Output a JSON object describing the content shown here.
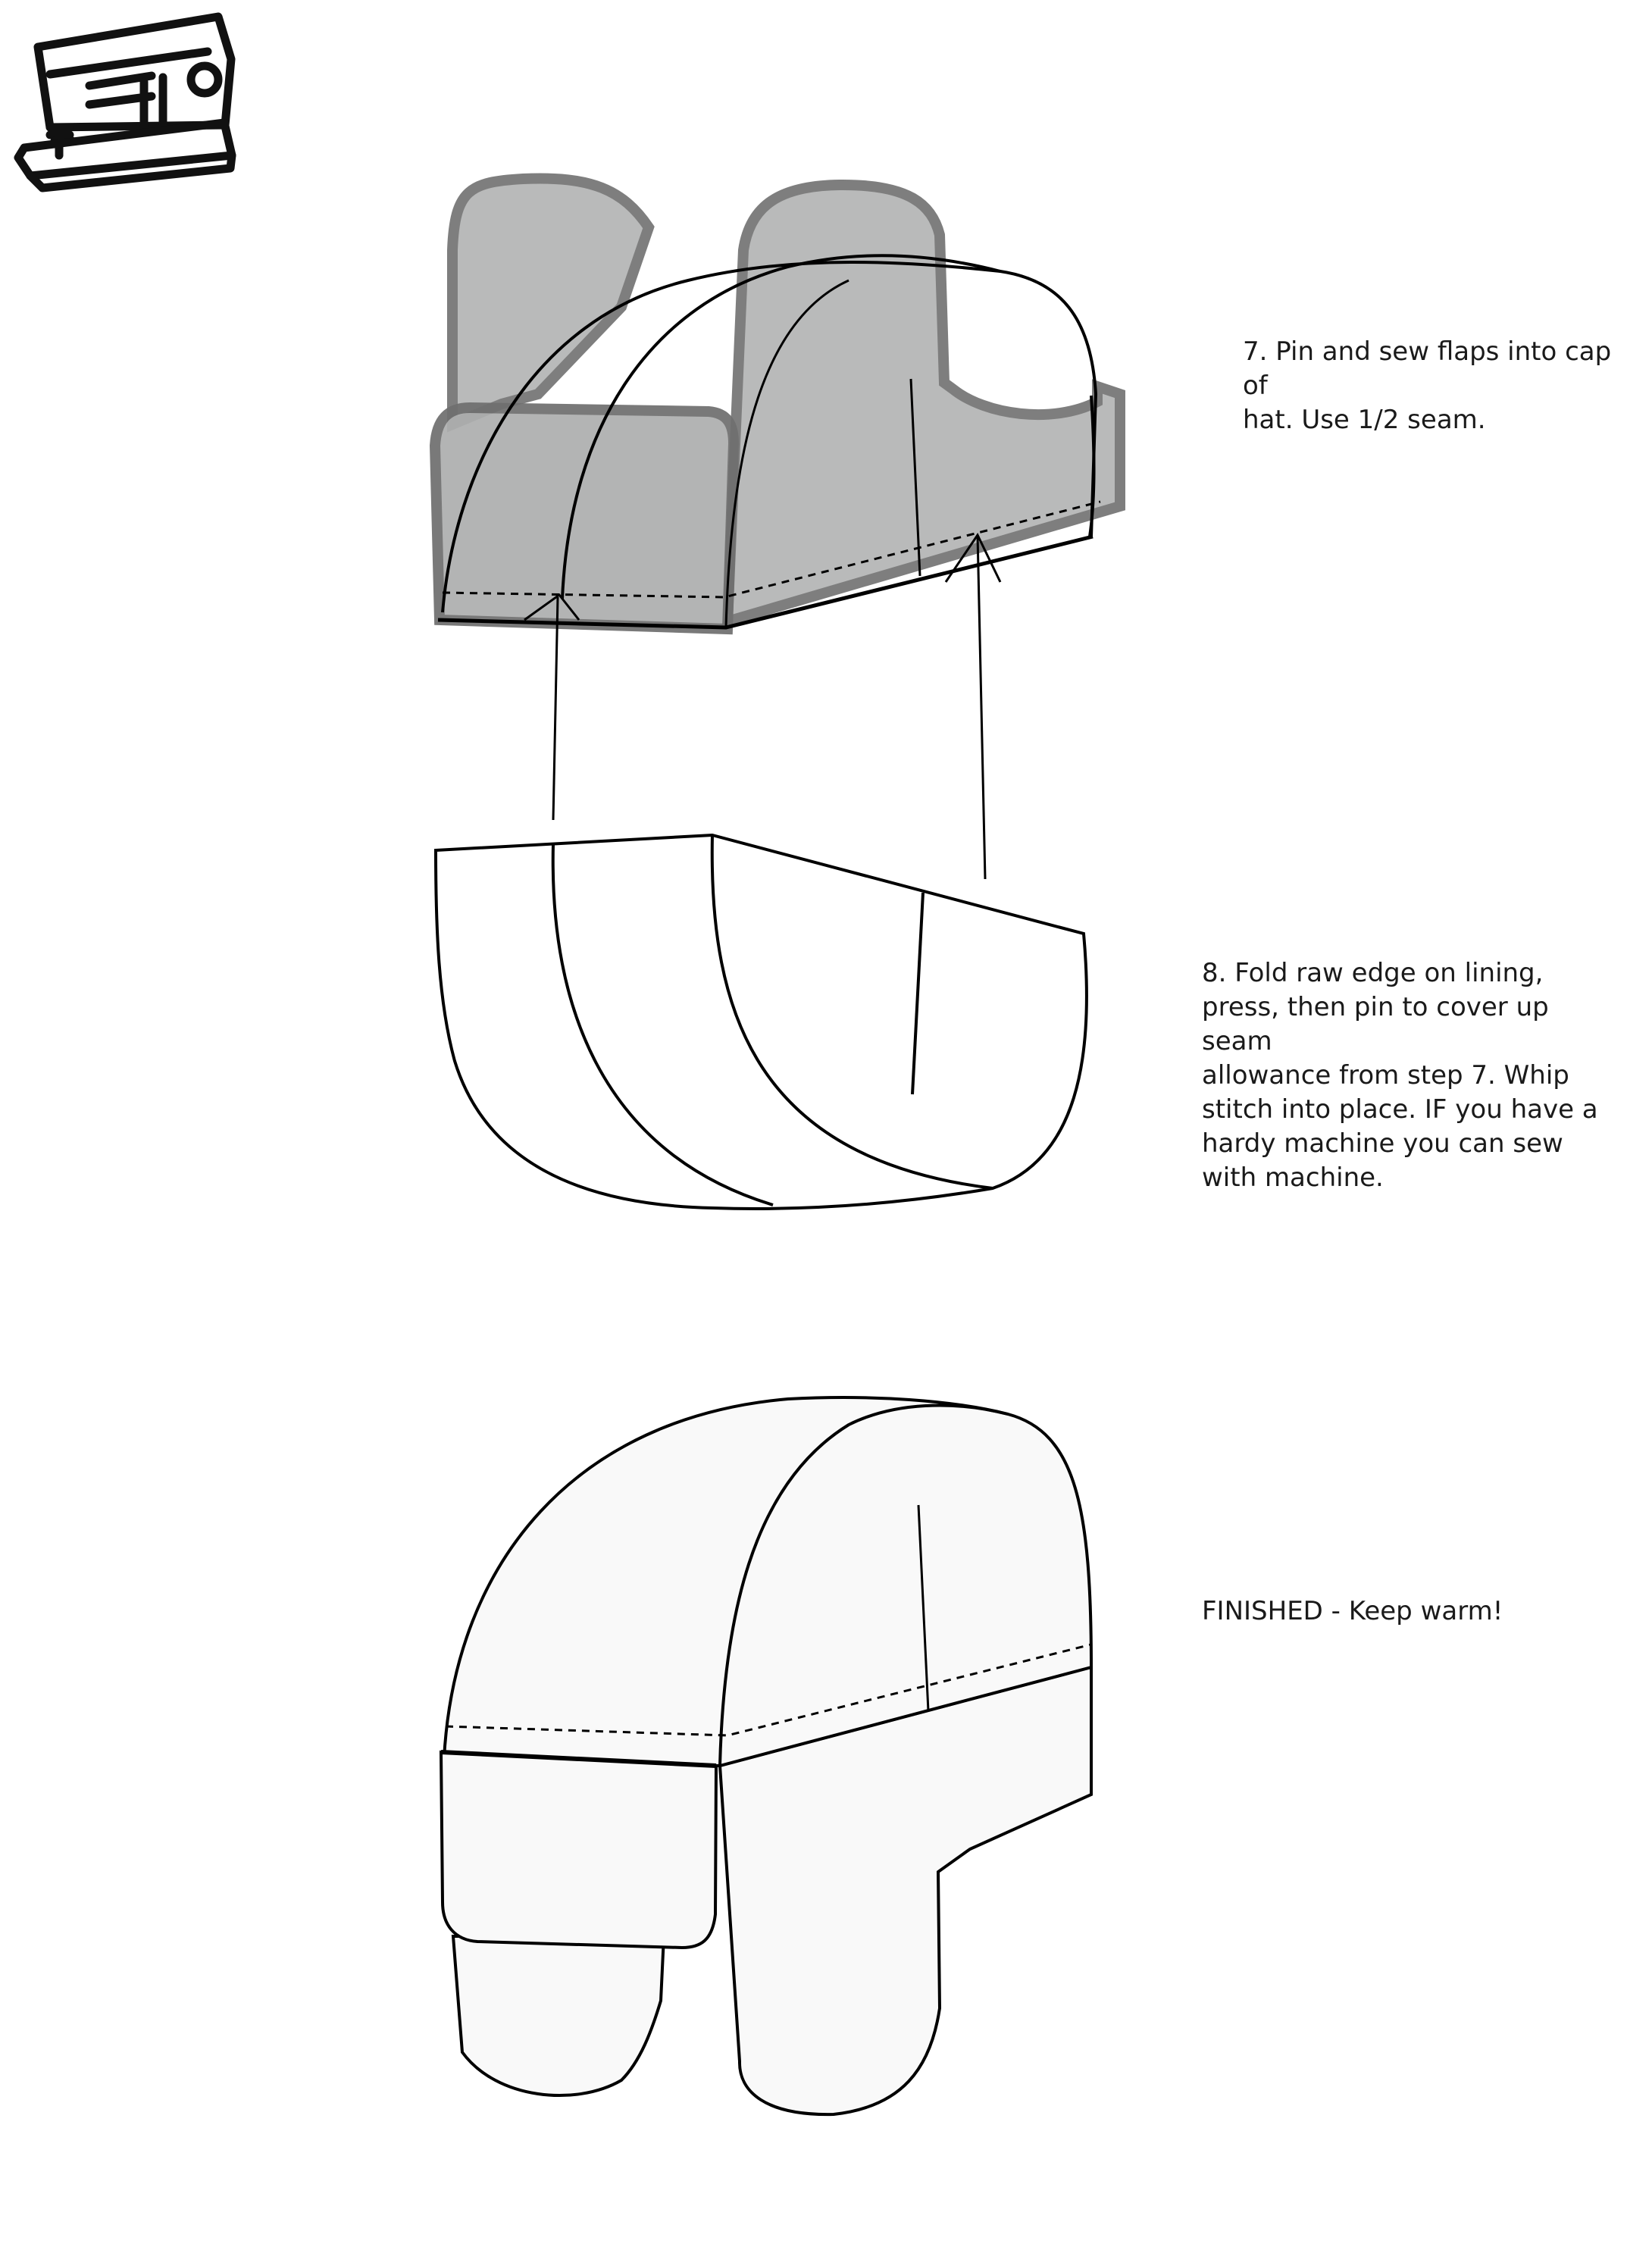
{
  "steps": {
    "step7": "7.  Pin and sew flaps into cap of\nhat.  Use 1/2 seam.",
    "step8": "8.  Fold raw edge on lining,\npress, then pin to cover up seam\nallowance from step 7.  Whip\nstitch into place.  IF you have a\nhardy machine you can sew\nwith machine.",
    "finished": "FINISHED - Keep warm!"
  },
  "icons": {
    "corner": "sewing-machine-icon"
  },
  "colors": {
    "line": "#000000",
    "flap_fill": "#b4b5b5",
    "flap_edge": "#757575",
    "hat_fill": "#f9f9f9",
    "background": "#ffffff"
  }
}
